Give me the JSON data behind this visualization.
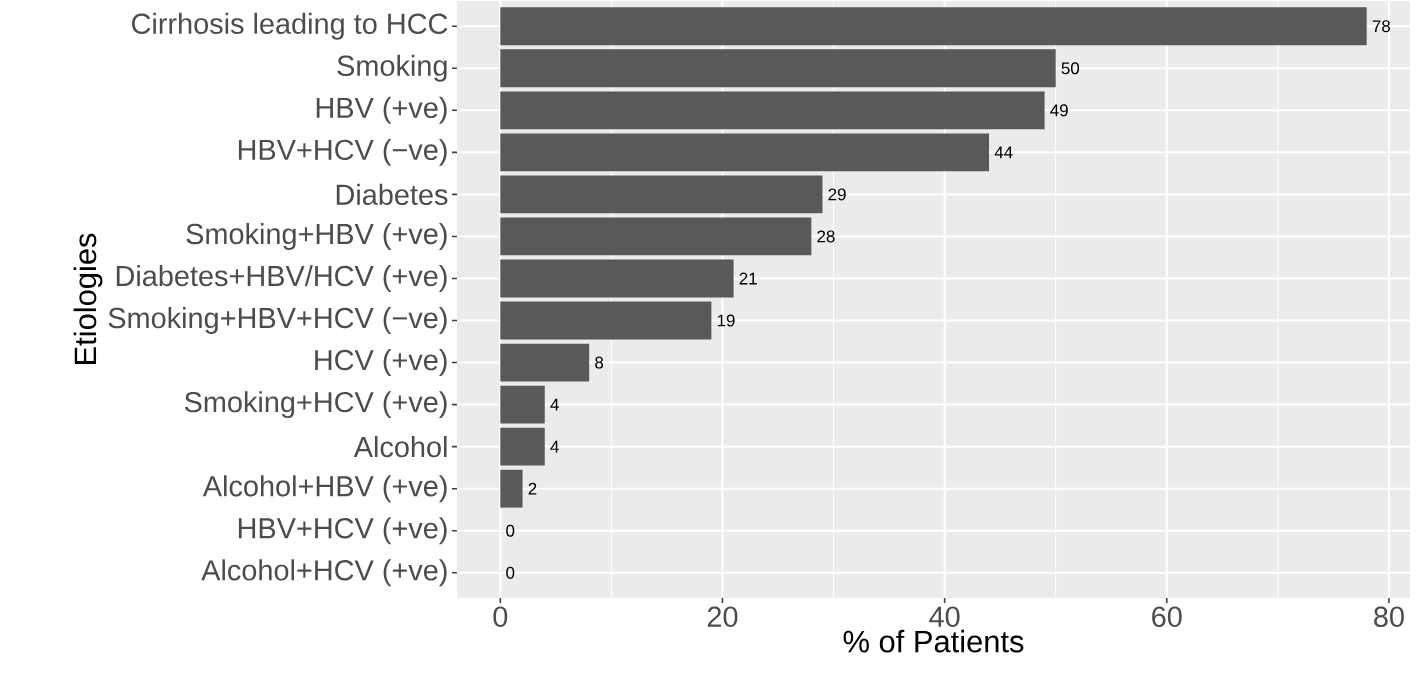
{
  "chart_data": {
    "type": "bar",
    "orientation": "horizontal",
    "xlabel": "% of Patients",
    "ylabel": "Etiologies",
    "categories": [
      "Cirrhosis leading to HCC",
      "Smoking",
      "HBV (+ve)",
      "HBV+HCV (−ve)",
      "Diabetes",
      "Smoking+HBV (+ve)",
      "Diabetes+HBV/HCV (+ve)",
      "Smoking+HBV+HCV (−ve)",
      "HCV (+ve)",
      "Smoking+HCV (+ve)",
      "Alcohol",
      "Alcohol+HBV (+ve)",
      "HBV+HCV (+ve)",
      "Alcohol+HCV (+ve)"
    ],
    "values": [
      78,
      50,
      49,
      44,
      29,
      28,
      21,
      19,
      8,
      4,
      4,
      2,
      0,
      0
    ],
    "color": "#595959",
    "data_labels": true,
    "grid": true,
    "xlim": [
      -3.9,
      81.9
    ],
    "xticks": [
      0,
      20,
      40,
      60,
      80
    ]
  }
}
